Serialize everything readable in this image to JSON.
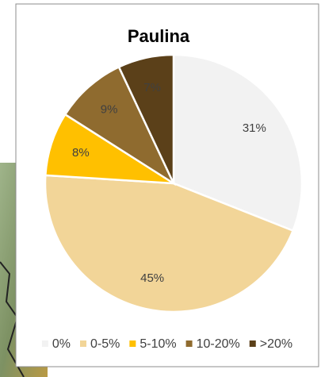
{
  "chart_data": {
    "type": "pie",
    "title": "Paulina",
    "categories": [
      "0%",
      "0-5%",
      "5-10%",
      "10-20%",
      ">20%"
    ],
    "values": [
      31,
      45,
      8,
      9,
      7
    ],
    "value_labels": [
      "31%",
      "45%",
      "8%",
      "9%",
      "7%"
    ],
    "colors": [
      "#f2f2f2",
      "#f2d598",
      "#ffc000",
      "#8f6b2f",
      "#5b4019"
    ],
    "legend": "bottom"
  }
}
